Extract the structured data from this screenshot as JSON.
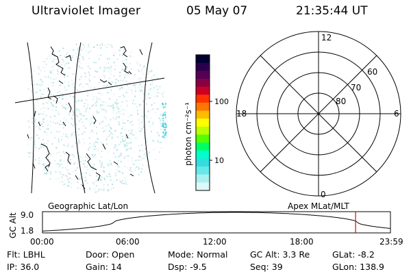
{
  "header": {
    "title": "Ultraviolet Imager",
    "date": "05 May 07",
    "time": "21:35:44 UT"
  },
  "colorbar": {
    "label": "photon cm⁻²s⁻¹",
    "ticks": [
      "100",
      "10"
    ],
    "colors": [
      "#000033",
      "#2a004d",
      "#550055",
      "#880044",
      "#cc0022",
      "#ff3300",
      "#ff7700",
      "#ffbb00",
      "#ffff00",
      "#bbff00",
      "#55ff00",
      "#00ff66",
      "#00ffcc",
      "#33dddd",
      "#66e8e8",
      "#aaf0f0",
      "#ddf8f8"
    ]
  },
  "polar": {
    "mlt_labels": {
      "top": "12",
      "left": "18",
      "right": "6",
      "bottom": "0"
    },
    "lat_labels": [
      "60",
      "70",
      "80"
    ]
  },
  "timeline": {
    "left_label": "Geographic Lat/Lon",
    "right_label": "Apex MLat/MLT",
    "y_title": "GC Alt",
    "y_ticks": [
      "9.0",
      "1.8"
    ],
    "x_ticks": [
      "00:00",
      "06:00",
      "12:00",
      "18:00",
      "23:59"
    ],
    "marker_time_fraction": 0.8998
  },
  "info": {
    "row1": [
      "Flt: LBHL",
      "Door: Open",
      "Mode: Normal",
      "GC Alt: 3.3 Re",
      "GLat:  -8.2"
    ],
    "row2": [
      "IP: 36.0",
      "Gain: 14",
      "Dsp:    -9.5",
      "Seq: 39",
      "GLon: 138.9"
    ]
  }
}
